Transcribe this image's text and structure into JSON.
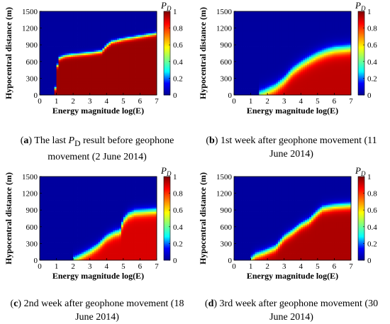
{
  "captions": [
    {
      "letter": "a",
      "pre": " The last ",
      "pd": "P",
      "pd_sub": "D",
      "post": " result before geophone movement (2 June 2014)"
    },
    {
      "letter": "b",
      "pre": " 1st week after geophone movement (11 June 2014)",
      "pd": "",
      "pd_sub": "",
      "post": ""
    },
    {
      "letter": "c",
      "pre": " 2nd week after geophone movement (18 June 2014)",
      "pd": "",
      "pd_sub": "",
      "post": ""
    },
    {
      "letter": "d",
      "pre": " 3rd week after geophone movement (30 June 2014)",
      "pd": "",
      "pd_sub": "",
      "post": ""
    }
  ],
  "colors": {
    "colormap": [
      "#00008f",
      "#0000ff",
      "#00ffff",
      "#80ff80",
      "#ffff00",
      "#ff8000",
      "#ff0000",
      "#800000"
    ]
  },
  "chart_data": [
    {
      "type": "heatmap",
      "id": "a",
      "xlabel": "Energy magnitude log(E)",
      "ylabel": "Hypocentral distance (m)",
      "colorbar_label": "P",
      "colorbar_label_sub": "D",
      "xlim": [
        0,
        7
      ],
      "ylim": [
        0,
        1500
      ],
      "xticks": [
        0,
        1,
        2,
        3,
        4,
        5,
        6,
        7
      ],
      "yticks": [
        0,
        300,
        600,
        900,
        1200,
        1500
      ],
      "cticks": [
        0,
        0.2,
        0.4,
        0.6,
        0.8,
        1
      ],
      "clim": [
        0,
        1
      ],
      "boundary_x": [
        0.0,
        0.6,
        0.9,
        1.1,
        1.5,
        2.0,
        3.0,
        3.7,
        4.0,
        4.3,
        5.0,
        6.0,
        7.0
      ],
      "boundary_y": [
        0,
        0,
        0,
        650,
        700,
        720,
        750,
        780,
        880,
        950,
        1000,
        1050,
        1100
      ],
      "transition": 80,
      "plateau": 0.97,
      "base": 0.02
    },
    {
      "type": "heatmap",
      "id": "b",
      "xlabel": "Energy magnitude log(E)",
      "ylabel": "Hypocentral distance (m)",
      "colorbar_label": "P",
      "colorbar_label_sub": "D",
      "xlim": [
        0,
        7
      ],
      "ylim": [
        0,
        1500
      ],
      "xticks": [
        0,
        1,
        2,
        3,
        4,
        5,
        6,
        7
      ],
      "yticks": [
        0,
        300,
        600,
        900,
        1200,
        1500
      ],
      "cticks": [
        0,
        0.2,
        0.4,
        0.6,
        0.8,
        1
      ],
      "clim": [
        0,
        1
      ],
      "boundary_x": [
        0.0,
        1.5,
        1.8,
        2.0,
        2.5,
        3.0,
        3.5,
        4.0,
        4.5,
        5.0,
        5.5,
        6.0,
        7.0
      ],
      "boundary_y": [
        0,
        0,
        30,
        60,
        130,
        250,
        420,
        530,
        620,
        700,
        760,
        800,
        830
      ],
      "transition": 220,
      "plateau": 0.93,
      "base": 0.02
    },
    {
      "type": "heatmap",
      "id": "c",
      "xlabel": "Energy magnitude log(E)",
      "ylabel": "Hypocentral distance (m)",
      "colorbar_label": "P",
      "colorbar_label_sub": "D",
      "xlim": [
        0,
        7
      ],
      "ylim": [
        0,
        1500
      ],
      "xticks": [
        0,
        1,
        2,
        3,
        4,
        5,
        6,
        7
      ],
      "yticks": [
        0,
        300,
        600,
        900,
        1200,
        1500
      ],
      "cticks": [
        0,
        0.2,
        0.4,
        0.6,
        0.8,
        1
      ],
      "clim": [
        0,
        1
      ],
      "boundary_x": [
        0.0,
        2.0,
        2.3,
        3.0,
        3.5,
        4.0,
        4.5,
        4.8,
        5.0,
        5.3,
        5.7,
        6.5,
        7.0
      ],
      "boundary_y": [
        0,
        0,
        40,
        150,
        250,
        400,
        480,
        500,
        700,
        800,
        850,
        870,
        880
      ],
      "transition": 170,
      "plateau": 0.9,
      "base": 0.02
    },
    {
      "type": "heatmap",
      "id": "d",
      "xlabel": "Energy magnitude log(E)",
      "ylabel": "Hypocentral distance (m)",
      "colorbar_label": "P",
      "colorbar_label_sub": "D",
      "xlim": [
        0,
        7
      ],
      "ylim": [
        0,
        1500
      ],
      "xticks": [
        0,
        1,
        2,
        3,
        4,
        5,
        6,
        7
      ],
      "yticks": [
        0,
        300,
        600,
        900,
        1200,
        1500
      ],
      "cticks": [
        0,
        0.2,
        0.4,
        0.6,
        0.8,
        1
      ],
      "clim": [
        0,
        1
      ],
      "boundary_x": [
        0.0,
        1.0,
        1.3,
        1.8,
        2.5,
        3.0,
        3.5,
        4.0,
        4.5,
        5.0,
        5.3,
        6.0,
        7.0
      ],
      "boundary_y": [
        0,
        0,
        80,
        130,
        220,
        400,
        500,
        620,
        700,
        850,
        920,
        960,
        980
      ],
      "transition": 160,
      "plateau": 0.95,
      "base": 0.02
    }
  ]
}
